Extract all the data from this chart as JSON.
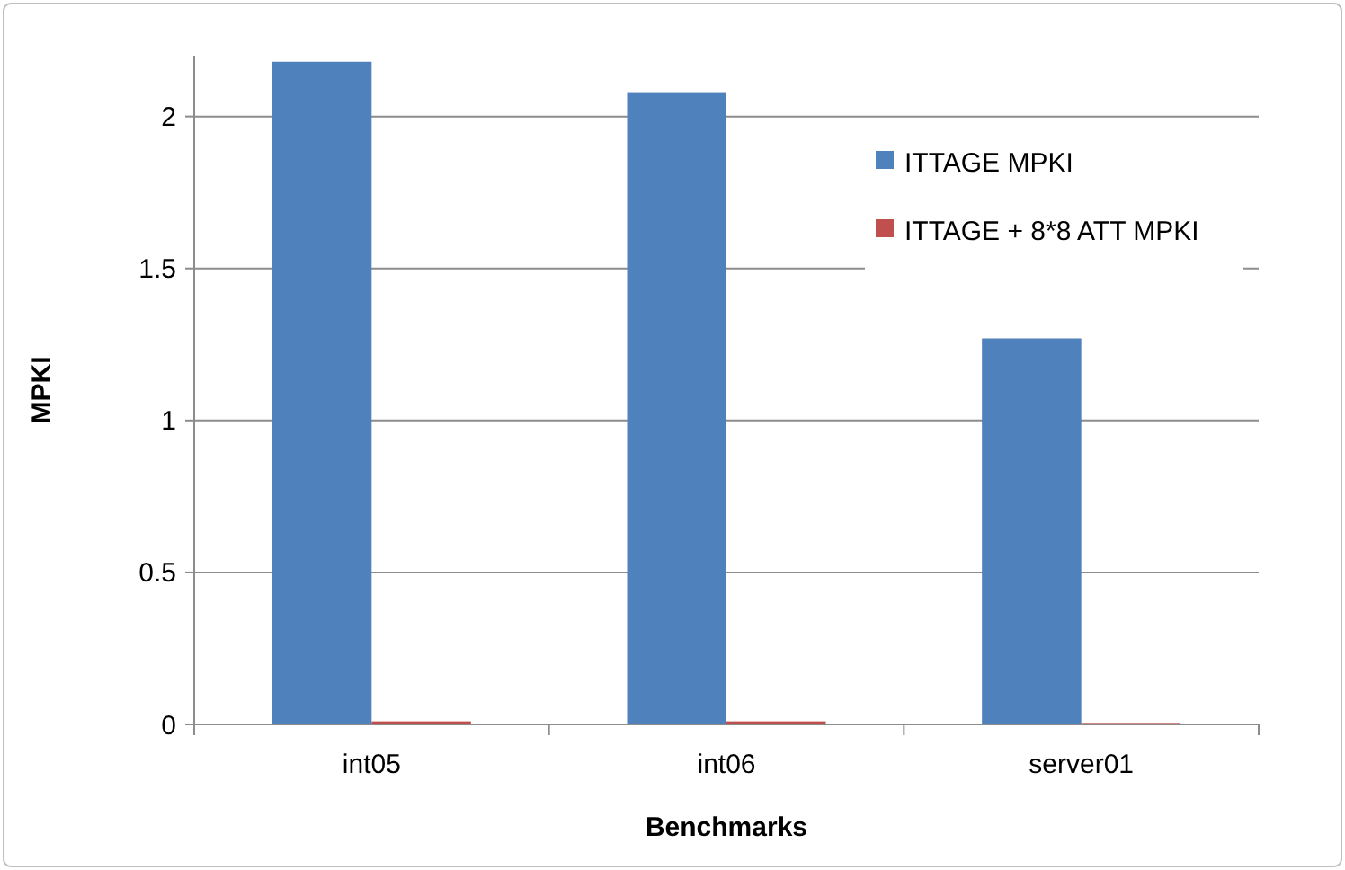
{
  "chart_data": {
    "type": "bar",
    "xlabel": "Benchmarks",
    "ylabel": "MPKI",
    "categories": [
      "int05",
      "int06",
      "server01"
    ],
    "series": [
      {
        "name": "ITTAGE MPKI",
        "color": "#4f81bd",
        "values": [
          2.18,
          2.08,
          1.27
        ]
      },
      {
        "name": "ITTAGE + 8*8 ATT MPKI",
        "color": "#c0504d",
        "values": [
          0.01,
          0.01,
          0.005
        ]
      }
    ],
    "ylim": [
      0,
      2.2
    ],
    "yticks": [
      0,
      0.5,
      1,
      1.5,
      2
    ],
    "grid": "y",
    "legend": "right"
  }
}
